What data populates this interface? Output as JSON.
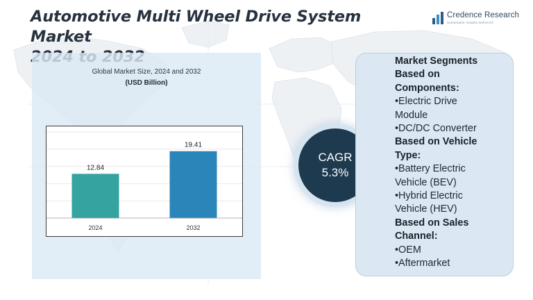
{
  "header": {
    "title_line1": "Automotive Multi Wheel Drive System Market",
    "title_line2": "2024 to 2032"
  },
  "brand": {
    "name": "Credence Research",
    "tagline": "Sustainable Insights Delivered"
  },
  "chart_data": {
    "type": "bar",
    "title": "Global Market Size, 2024 and 2032",
    "ylabel": "(USD Billion)",
    "categories": [
      "2024",
      "2032"
    ],
    "values": [
      12.84,
      19.41
    ],
    "data_labels": [
      "12.84",
      "19.41"
    ],
    "colors": [
      "#35a3a0",
      "#2a85b9"
    ],
    "ylim": [
      0,
      25
    ],
    "grid": true,
    "legend": "none"
  },
  "cagr": {
    "label": "CAGR",
    "value": "5.3%"
  },
  "segments": {
    "lines": [
      {
        "text": "Market Segments",
        "heading": true
      },
      {
        "text": "Based on",
        "heading": true
      },
      {
        "text": "Components:",
        "heading": true
      },
      {
        "text": "•Electric Drive",
        "heading": false
      },
      {
        "text": "Module",
        "heading": false
      },
      {
        "text": "•DC/DC Converter",
        "heading": false
      },
      {
        "text": "Based on Vehicle",
        "heading": true
      },
      {
        "text": "Type:",
        "heading": true
      },
      {
        "text": "•Battery Electric",
        "heading": false
      },
      {
        "text": "Vehicle (BEV)",
        "heading": false
      },
      {
        "text": "•Hybrid Electric",
        "heading": false
      },
      {
        "text": "Vehicle (HEV)",
        "heading": false
      },
      {
        "text": "Based on Sales",
        "heading": true
      },
      {
        "text": "Channel:",
        "heading": true
      },
      {
        "text": "•OEM",
        "heading": false
      },
      {
        "text": "•Aftermarket",
        "heading": false
      }
    ]
  },
  "colors": {
    "title": "#27323f",
    "panel_bg": "#dbe9f5",
    "cagr_circle": "#1d3a4f",
    "card_bg": "#dbe8f3"
  }
}
